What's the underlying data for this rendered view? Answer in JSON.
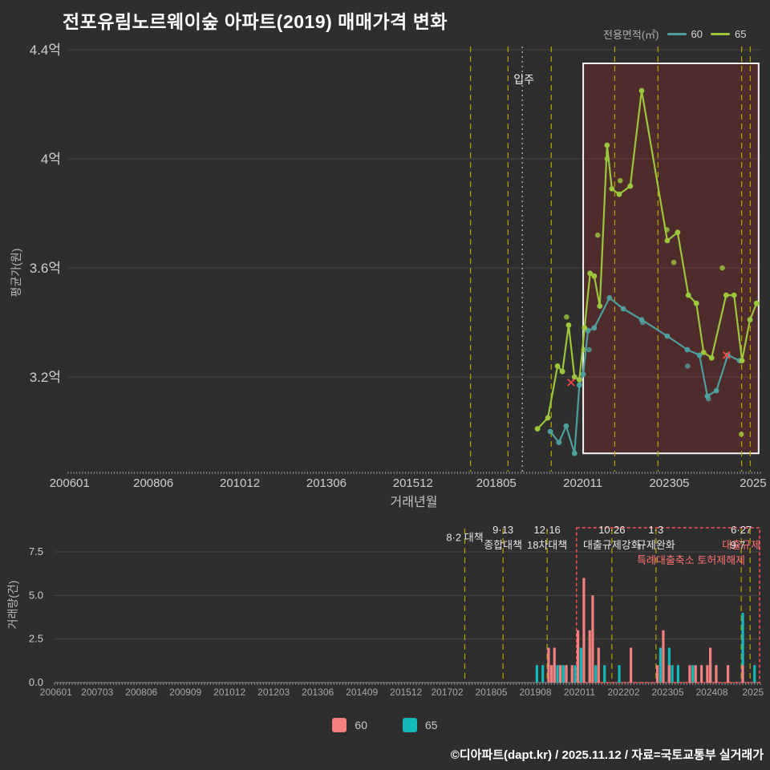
{
  "title": "전포유림노르웨이숲 아파트(2019) 매매가격 변화",
  "footer": "©디아파트(dapt.kr) / 2025.11.12 / 자료=국토교통부 실거래가",
  "legend_top": {
    "label": "전용면적(㎡)",
    "items": [
      {
        "name": "60",
        "color": "#4f9e9e"
      },
      {
        "name": "65",
        "color": "#9cc73d"
      }
    ]
  },
  "legend_bottom": {
    "items": [
      {
        "name": "60",
        "color": "#f47f7f"
      },
      {
        "name": "65",
        "color": "#15b8b8"
      }
    ]
  },
  "colors": {
    "bg": "#2e2e2e",
    "grid": "#474747",
    "tick_text": "#cfcfcf",
    "teal": "#4f9e9e",
    "green": "#9cc73d",
    "bar60": "#f47f7f",
    "bar65": "#15b8b8",
    "policy_line": "#ad9e00",
    "highlight_stroke": "#f2f2f2",
    "highlight_fill": "rgba(150,40,40,0.32)",
    "alert_box": "#ff5252",
    "move_in_line": "#c8c8c8",
    "x_marker": "#ff4545",
    "annotation_red": "#ff7272"
  },
  "policies": [
    {
      "date": "2017-08",
      "lines": [
        "8·2 대책"
      ],
      "row_offset": 0.5,
      "align": "center",
      "colors": [
        "#e6e6e6"
      ]
    },
    {
      "date": "2018-09",
      "lines": [
        "9·13",
        "종합대책"
      ],
      "row_offset": 0,
      "align": "center",
      "colors": [
        "#e6e6e6",
        "#e6e6e6"
      ]
    },
    {
      "date": "2019-12",
      "lines": [
        "12·16",
        "18차대책"
      ],
      "row_offset": 0,
      "align": "center",
      "colors": [
        "#e6e6e6",
        "#e6e6e6"
      ]
    },
    {
      "date": "2021-10",
      "lines": [
        "10·26",
        "대출규제강화"
      ],
      "row_offset": 0,
      "align": "center",
      "colors": [
        "#e6e6e6",
        "#e6e6e6"
      ]
    },
    {
      "date": "2023-01",
      "lines": [
        "1·3",
        "규제완화"
      ],
      "row_offset": 0,
      "align": "center",
      "colors": [
        "#e6e6e6",
        "#e6e6e6"
      ]
    },
    {
      "date": "2025-06",
      "lines": [
        "6·27",
        "대출규제"
      ],
      "row_offset": 0,
      "align": "center",
      "colors": [
        "#e6e6e6",
        "#ff7272"
      ]
    },
    {
      "date": "2025-09",
      "lines": [
        "9·7",
        "특례대출축소 토허제해제"
      ],
      "row_offset": 1,
      "align": "right",
      "colors": [
        "#e6e6e6",
        "#ff7272"
      ]
    }
  ],
  "chart_data": [
    {
      "type": "line",
      "title": "",
      "xlabel": "거래년월",
      "ylabel": "평균가(원)",
      "xlim": [
        2006.0,
        2026.0
      ],
      "ylim": [
        2.85,
        4.42
      ],
      "grid": true,
      "yticks": [
        {
          "v": 3.2,
          "label": "3.2억"
        },
        {
          "v": 3.6,
          "label": "3.6억"
        },
        {
          "v": 4.0,
          "label": "4억"
        },
        {
          "v": 4.4,
          "label": "4.4억"
        }
      ],
      "xticks": [
        {
          "v": 2006.04,
          "label": "200601"
        },
        {
          "v": 2008.46,
          "label": "200806"
        },
        {
          "v": 2010.96,
          "label": "201012"
        },
        {
          "v": 2013.46,
          "label": "201306"
        },
        {
          "v": 2015.96,
          "label": "201512"
        },
        {
          "v": 2018.37,
          "label": "201805"
        },
        {
          "v": 2020.87,
          "label": "202011"
        },
        {
          "v": 2023.37,
          "label": "202305"
        },
        {
          "v": 2025.79,
          "label": "2025"
        }
      ],
      "move_in": {
        "x": 2019.12,
        "label": "입주"
      },
      "highlight_box": {
        "x0": 2020.88,
        "x1": 2025.95,
        "y0": 2.92,
        "y1": 4.35
      },
      "series": [
        {
          "name": "60",
          "color": "#4f9e9e",
          "x": [
            2019.93,
            2020.18,
            2020.39,
            2020.63,
            2020.77,
            2020.88,
            2021.02,
            2021.2,
            2021.64,
            2022.04,
            2022.57,
            2023.31,
            2023.89,
            2024.24,
            2024.47,
            2024.73,
            2025.06,
            2025.4
          ],
          "y": [
            3.0,
            2.96,
            3.02,
            2.92,
            3.17,
            3.21,
            3.37,
            3.38,
            3.49,
            3.45,
            3.41,
            3.35,
            3.3,
            3.28,
            3.13,
            3.15,
            3.28,
            3.26
          ]
        },
        {
          "name": "65",
          "color": "#9cc73d",
          "x": [
            2019.56,
            2019.86,
            2020.14,
            2020.28,
            2020.46,
            2020.63,
            2020.77,
            2020.92,
            2021.08,
            2021.2,
            2021.36,
            2021.57,
            2021.71,
            2021.92,
            2022.24,
            2022.57,
            2023.31,
            2023.61,
            2023.92,
            2024.15,
            2024.36,
            2024.59,
            2025.01,
            2025.24,
            2025.47,
            2025.7,
            2025.89
          ],
          "y": [
            3.01,
            3.05,
            3.24,
            3.22,
            3.39,
            3.2,
            3.19,
            3.38,
            3.58,
            3.57,
            3.46,
            4.05,
            3.89,
            3.87,
            3.9,
            4.25,
            3.7,
            3.73,
            3.5,
            3.47,
            3.29,
            3.27,
            3.5,
            3.5,
            3.26,
            3.41,
            3.47
          ]
        }
      ],
      "scatter": [
        {
          "s": "65",
          "x": 2020.4,
          "y": 3.42
        },
        {
          "s": "65",
          "x": 2020.9,
          "y": 3.3
        },
        {
          "s": "65",
          "x": 2021.3,
          "y": 3.72
        },
        {
          "s": "65",
          "x": 2021.57,
          "y": 4.0
        },
        {
          "s": "65",
          "x": 2021.95,
          "y": 3.92
        },
        {
          "s": "65",
          "x": 2023.3,
          "y": 3.74
        },
        {
          "s": "65",
          "x": 2023.5,
          "y": 3.62
        },
        {
          "s": "65",
          "x": 2024.9,
          "y": 3.6
        },
        {
          "s": "65",
          "x": 2025.45,
          "y": 2.99
        },
        {
          "s": "60",
          "x": 2021.05,
          "y": 3.3
        },
        {
          "s": "60",
          "x": 2022.6,
          "y": 3.4
        },
        {
          "s": "60",
          "x": 2023.9,
          "y": 3.24
        },
        {
          "s": "60",
          "x": 2024.5,
          "y": 3.12
        }
      ],
      "x_markers": [
        {
          "x": 2020.53,
          "y": 3.18
        },
        {
          "x": 2025.02,
          "y": 3.28
        }
      ]
    },
    {
      "type": "bar",
      "title": "",
      "xlabel": "",
      "ylabel": "거래량(건)",
      "ylim": [
        0,
        8.4
      ],
      "grid": true,
      "yticks": [
        0.0,
        2.5,
        5.0,
        7.5
      ],
      "xticks": [
        {
          "v": "2006-01",
          "label": "200601"
        },
        {
          "v": "2007-03",
          "label": "200703"
        },
        {
          "v": "2008-06",
          "label": "200806"
        },
        {
          "v": "2009-09",
          "label": "200909"
        },
        {
          "v": "2010-12",
          "label": "201012"
        },
        {
          "v": "2012-03",
          "label": "201203"
        },
        {
          "v": "2013-06",
          "label": "201306"
        },
        {
          "v": "2014-09",
          "label": "201409"
        },
        {
          "v": "2015-12",
          "label": "201512"
        },
        {
          "v": "2017-02",
          "label": "201702"
        },
        {
          "v": "2018-05",
          "label": "201805"
        },
        {
          "v": "2019-08",
          "label": "201908"
        },
        {
          "v": "2020-11",
          "label": "202011"
        },
        {
          "v": "2022-02",
          "label": "202202"
        },
        {
          "v": "2023-05",
          "label": "202305"
        },
        {
          "v": "2024-08",
          "label": "202408"
        },
        {
          "v": "2025-10",
          "label": "2025"
        }
      ],
      "highlight_box": {
        "x0": 2020.79,
        "x1": 2025.98
      },
      "bars": [
        {
          "m": "2019-08",
          "v65": 1
        },
        {
          "m": "2019-10",
          "v65": 1
        },
        {
          "m": "2020-01",
          "v60": 2
        },
        {
          "m": "2020-02",
          "v60": 1,
          "v65": 1
        },
        {
          "m": "2020-03",
          "v60": 2,
          "v65": 1
        },
        {
          "m": "2020-04",
          "v65": 1
        },
        {
          "m": "2020-05",
          "v60": 1,
          "v65": 1
        },
        {
          "m": "2020-06",
          "v65": 1
        },
        {
          "m": "2020-07",
          "v60": 1
        },
        {
          "m": "2020-09",
          "v60": 1,
          "v65": 1
        },
        {
          "m": "2020-11",
          "v60": 3,
          "v65": 2
        },
        {
          "m": "2021-01",
          "v60": 6
        },
        {
          "m": "2021-02",
          "v65": 2
        },
        {
          "m": "2021-03",
          "v60": 3
        },
        {
          "m": "2021-04",
          "v60": 5,
          "v65": 1
        },
        {
          "m": "2021-06",
          "v60": 2
        },
        {
          "m": "2021-07",
          "v65": 1
        },
        {
          "m": "2021-12",
          "v65": 1
        },
        {
          "m": "2022-05",
          "v60": 2
        },
        {
          "m": "2023-02",
          "v60": 1,
          "v65": 2
        },
        {
          "m": "2023-04",
          "v60": 3
        },
        {
          "m": "2023-05",
          "v65": 2
        },
        {
          "m": "2023-06",
          "v60": 1,
          "v65": 1
        },
        {
          "m": "2023-08",
          "v65": 1
        },
        {
          "m": "2024-01",
          "v60": 1,
          "v65": 1
        },
        {
          "m": "2024-03",
          "v60": 1
        },
        {
          "m": "2024-05",
          "v60": 1
        },
        {
          "m": "2024-07",
          "v60": 1,
          "v65": 1
        },
        {
          "m": "2024-08",
          "v60": 2
        },
        {
          "m": "2024-10",
          "v60": 1
        },
        {
          "m": "2025-02",
          "v60": 1
        },
        {
          "m": "2025-06",
          "v65": 4
        },
        {
          "m": "2025-07",
          "v60": 1
        },
        {
          "m": "2025-10",
          "v65": 1
        }
      ]
    }
  ]
}
